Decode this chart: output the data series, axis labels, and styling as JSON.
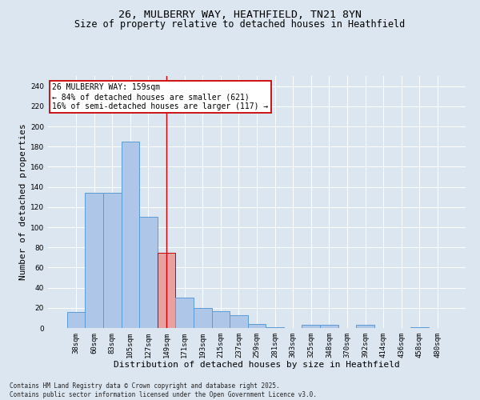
{
  "title_line1": "26, MULBERRY WAY, HEATHFIELD, TN21 8YN",
  "title_line2": "Size of property relative to detached houses in Heathfield",
  "xlabel": "Distribution of detached houses by size in Heathfield",
  "ylabel": "Number of detached properties",
  "categories": [
    "38sqm",
    "60sqm",
    "83sqm",
    "105sqm",
    "127sqm",
    "149sqm",
    "171sqm",
    "193sqm",
    "215sqm",
    "237sqm",
    "259sqm",
    "281sqm",
    "303sqm",
    "325sqm",
    "348sqm",
    "370sqm",
    "392sqm",
    "414sqm",
    "436sqm",
    "458sqm",
    "480sqm"
  ],
  "values": [
    16,
    134,
    134,
    185,
    110,
    75,
    30,
    20,
    17,
    13,
    4,
    1,
    0,
    3,
    3,
    0,
    3,
    0,
    0,
    1,
    0
  ],
  "bar_color": "#aec6e8",
  "bar_edge_color": "#5b9bd5",
  "highlight_bar_index": 5,
  "highlight_bar_color": "#e8a0a0",
  "highlight_bar_edge_color": "#cc0000",
  "vline_color": "#cc0000",
  "annotation_text": "26 MULBERRY WAY: 159sqm\n← 84% of detached houses are smaller (621)\n16% of semi-detached houses are larger (117) →",
  "annotation_box_color": "#ffffff",
  "annotation_box_edge_color": "#cc0000",
  "ylim": [
    0,
    250
  ],
  "yticks": [
    0,
    20,
    40,
    60,
    80,
    100,
    120,
    140,
    160,
    180,
    200,
    220,
    240
  ],
  "background_color": "#dce6f0",
  "plot_background_color": "#dce6f0",
  "footer_text": "Contains HM Land Registry data © Crown copyright and database right 2025.\nContains public sector information licensed under the Open Government Licence v3.0.",
  "title_fontsize": 9.5,
  "subtitle_fontsize": 8.5,
  "tick_fontsize": 6.5,
  "xlabel_fontsize": 8,
  "ylabel_fontsize": 8,
  "annotation_fontsize": 7,
  "footer_fontsize": 5.5
}
